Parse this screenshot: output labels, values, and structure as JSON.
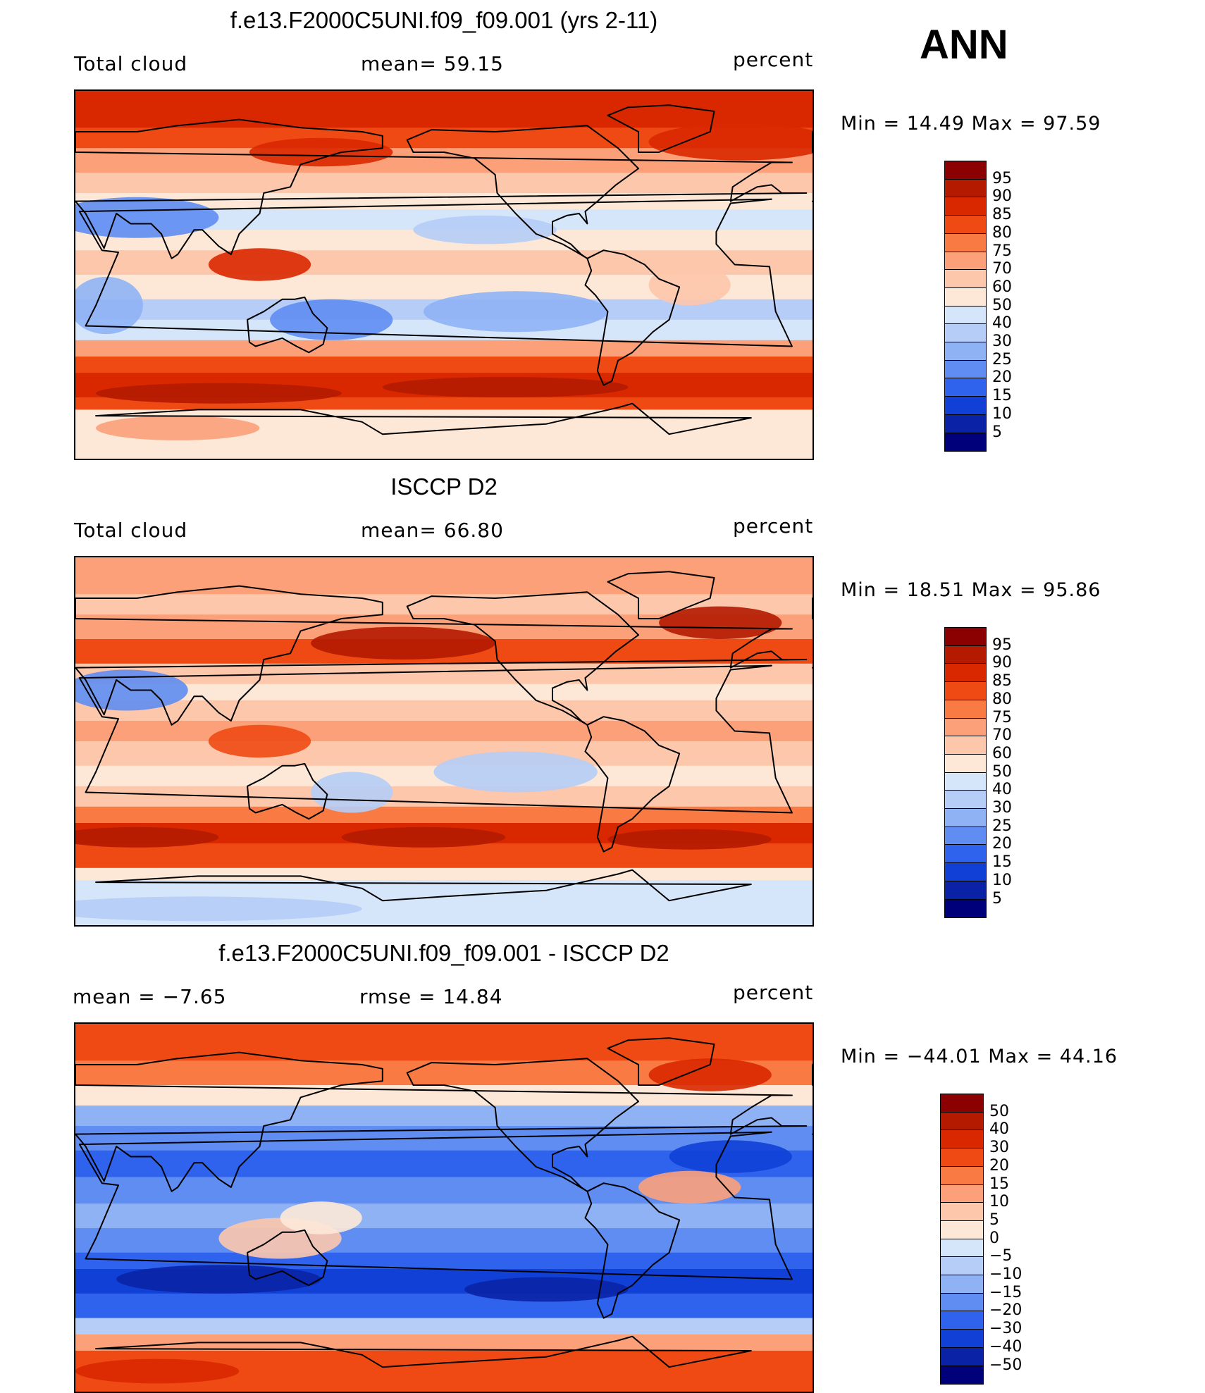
{
  "season": "ANN",
  "panels": [
    {
      "title": "f.e13.F2000C5UNI.f09_f09.001 (yrs 2-11)",
      "left_label": "Total cloud",
      "center_label": "mean=   59.15",
      "units": "percent",
      "minmax": "Min  =   14.49  Max  =   97.59",
      "scheme": "model"
    },
    {
      "title": "ISCCP D2",
      "left_label": "Total cloud",
      "center_label": "mean=   66.80",
      "units": "percent",
      "minmax": "Min  =   18.51  Max  =   95.86",
      "scheme": "obs"
    },
    {
      "title": "f.e13.F2000C5UNI.f09_f09.001 - ISCCP D2",
      "left_label": "mean  =   −7.65",
      "center_label": "rmse  =   14.84",
      "units": "percent",
      "minmax": "Min  = −44.01  Max  =   44.16",
      "scheme": "diff"
    }
  ],
  "colorbars": {
    "absolute": {
      "levels": [
        "95",
        "90",
        "85",
        "80",
        "75",
        "70",
        "60",
        "50",
        "40",
        "30",
        "25",
        "20",
        "15",
        "10",
        "5"
      ],
      "colors": [
        "#8b0000",
        "#b31a00",
        "#d92800",
        "#f04a14",
        "#fa7a43",
        "#fca07a",
        "#fdc7ac",
        "#fde8d8",
        "#d6e6fa",
        "#b5cdf7",
        "#8fb2f5",
        "#5f8df2",
        "#2f63ee",
        "#1040d6",
        "#0a23a6",
        "#00007a"
      ]
    },
    "difference": {
      "levels": [
        "50",
        "40",
        "30",
        "20",
        "15",
        "10",
        "5",
        "0",
        "−5",
        "−10",
        "−15",
        "−20",
        "−30",
        "−40",
        "−50"
      ],
      "colors": [
        "#8b0000",
        "#b31a00",
        "#d92800",
        "#f04a14",
        "#fa7a43",
        "#fca07a",
        "#fdc7ac",
        "#fde8d8",
        "#d6e6fa",
        "#b5cdf7",
        "#8fb2f5",
        "#5f8df2",
        "#2f63ee",
        "#1040d6",
        "#0a23a6",
        "#00007a"
      ]
    }
  }
}
